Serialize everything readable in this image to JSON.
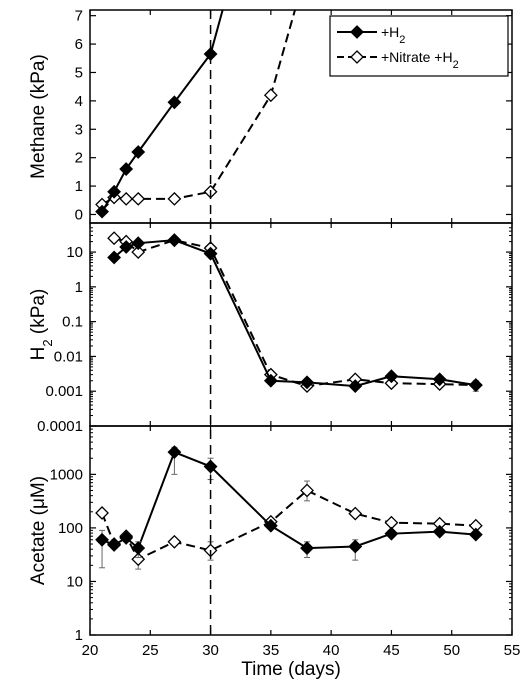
{
  "chart_data": {
    "type": "line",
    "layout": "three vertically stacked panels sharing the x axis",
    "x_axis": {
      "label": "Time (days)",
      "range": [
        20,
        55
      ],
      "ticks": [
        20,
        25,
        30,
        35,
        40,
        45,
        50,
        55
      ]
    },
    "reference_line": {
      "x": 30,
      "style": "dashed",
      "spans": "all panels"
    },
    "legend": {
      "panel": "methane",
      "position": "top-right",
      "entries": [
        {
          "series": "h2",
          "label": "+H",
          "sub": "2",
          "marker": "filled-diamond",
          "line": "solid"
        },
        {
          "series": "nitrate",
          "label": "+Nitrate +H",
          "sub": "2",
          "marker": "open-diamond",
          "line": "dashed"
        }
      ]
    },
    "series_styles": {
      "h2": {
        "marker": "filled-diamond",
        "line": "solid",
        "color": "#000000"
      },
      "nitrate": {
        "marker": "open-diamond",
        "line": "dashed",
        "color": "#000000"
      }
    },
    "panels": [
      {
        "id": "methane",
        "ylabel": "Methane (kPa)",
        "scale": "linear",
        "ylim": [
          -0.3,
          7.2
        ],
        "ticks": [
          {
            "value": 0,
            "label": "0"
          },
          {
            "value": 1,
            "label": "1"
          },
          {
            "value": 2,
            "label": "2"
          },
          {
            "value": 3,
            "label": "3"
          },
          {
            "value": 4,
            "label": "4"
          },
          {
            "value": 5,
            "label": "5"
          },
          {
            "value": 6,
            "label": "6"
          },
          {
            "value": 7,
            "label": "7"
          }
        ],
        "series": {
          "h2": {
            "points": [
              {
                "x": 21,
                "y": 0.1
              },
              {
                "x": 22,
                "y": 0.8
              },
              {
                "x": 23,
                "y": 1.6
              },
              {
                "x": 24,
                "y": 2.2
              },
              {
                "x": 27,
                "y": 3.95
              },
              {
                "x": 30,
                "y": 5.65
              }
            ],
            "continues_to": {
              "x": 31,
              "y": 7.2
            }
          },
          "nitrate": {
            "points": [
              {
                "x": 21,
                "y": 0.35
              },
              {
                "x": 22,
                "y": 0.6
              },
              {
                "x": 23,
                "y": 0.55
              },
              {
                "x": 24,
                "y": 0.55
              },
              {
                "x": 27,
                "y": 0.55
              },
              {
                "x": 30,
                "y": 0.8
              },
              {
                "x": 35,
                "y": 4.2
              }
            ],
            "continues_to": {
              "x": 37,
              "y": 7.2
            }
          }
        }
      },
      {
        "id": "h2",
        "ylabel": "H",
        "ylabel_sub": "2",
        "ylabel_tail": " (kPa)",
        "scale": "log",
        "ylim": [
          0.0001,
          60
        ],
        "ticks": [
          {
            "value": 10,
            "label": "10"
          },
          {
            "value": 1,
            "label": "1"
          },
          {
            "value": 0.1,
            "label": "0.1"
          },
          {
            "value": 0.01,
            "label": "0.01"
          },
          {
            "value": 0.001,
            "label": "0.001"
          },
          {
            "value": 0.0001,
            "label": "0.0001"
          }
        ],
        "series": {
          "h2": {
            "points": [
              {
                "x": 22,
                "y": 7
              },
              {
                "x": 23,
                "y": 14
              },
              {
                "x": 24,
                "y": 18
              },
              {
                "x": 27,
                "y": 22
              },
              {
                "x": 30,
                "y": 9
              },
              {
                "x": 35,
                "y": 0.002
              },
              {
                "x": 38,
                "y": 0.0018
              },
              {
                "x": 42,
                "y": 0.0014
              },
              {
                "x": 45,
                "y": 0.0027
              },
              {
                "x": 49,
                "y": 0.0022
              },
              {
                "x": 52,
                "y": 0.0015
              }
            ]
          },
          "nitrate": {
            "points": [
              {
                "x": 22,
                "y": 25
              },
              {
                "x": 23,
                "y": 20
              },
              {
                "x": 24,
                "y": 10
              },
              {
                "x": 27,
                "y": 22
              },
              {
                "x": 30,
                "y": 13
              },
              {
                "x": 35,
                "y": 0.003
              },
              {
                "x": 38,
                "y": 0.0014
              },
              {
                "x": 42,
                "y": 0.0022
              },
              {
                "x": 45,
                "y": 0.0017
              },
              {
                "x": 49,
                "y": 0.0016
              },
              {
                "x": 52,
                "y": 0.0015,
                "err": [
                  0.001,
                  0.002
                ]
              }
            ]
          }
        }
      },
      {
        "id": "acetate",
        "ylabel": "Acetate (μM)",
        "scale": "log",
        "ylim": [
          1,
          8000
        ],
        "ticks": [
          {
            "value": 1,
            "label": "1"
          },
          {
            "value": 10,
            "label": "10"
          },
          {
            "value": 100,
            "label": "100"
          },
          {
            "value": 1000,
            "label": "1000"
          }
        ],
        "series": {
          "h2": {
            "points": [
              {
                "x": 21,
                "y": 60,
                "err": [
                  18,
                  90
                ]
              },
              {
                "x": 22,
                "y": 48
              },
              {
                "x": 23,
                "y": 65
              },
              {
                "x": 24,
                "y": 42,
                "err": [
                  28,
                  55
                ]
              },
              {
                "x": 27,
                "y": 2600,
                "err": [
                  1000,
                  3200
                ]
              },
              {
                "x": 30,
                "y": 1400,
                "err": [
                  800,
                  2000
                ]
              },
              {
                "x": 35,
                "y": 110
              },
              {
                "x": 38,
                "y": 42,
                "err": [
                  28,
                  55
                ]
              },
              {
                "x": 42,
                "y": 45,
                "err": [
                  25,
                  60
                ]
              },
              {
                "x": 45,
                "y": 78
              },
              {
                "x": 49,
                "y": 85
              },
              {
                "x": 52,
                "y": 75
              }
            ]
          },
          "nitrate": {
            "points": [
              {
                "x": 21,
                "y": 190
              },
              {
                "x": 22,
                "y": 50
              },
              {
                "x": 23,
                "y": 70
              },
              {
                "x": 24,
                "y": 26,
                "err": [
                  17,
                  45
                ]
              },
              {
                "x": 27,
                "y": 55
              },
              {
                "x": 30,
                "y": 38,
                "err": [
                  25,
                  55
                ]
              },
              {
                "x": 35,
                "y": 130
              },
              {
                "x": 38,
                "y": 500,
                "err": [
                  320,
                  750
                ]
              },
              {
                "x": 42,
                "y": 185
              },
              {
                "x": 45,
                "y": 125
              },
              {
                "x": 49,
                "y": 120
              },
              {
                "x": 52,
                "y": 110
              }
            ]
          }
        }
      }
    ]
  }
}
